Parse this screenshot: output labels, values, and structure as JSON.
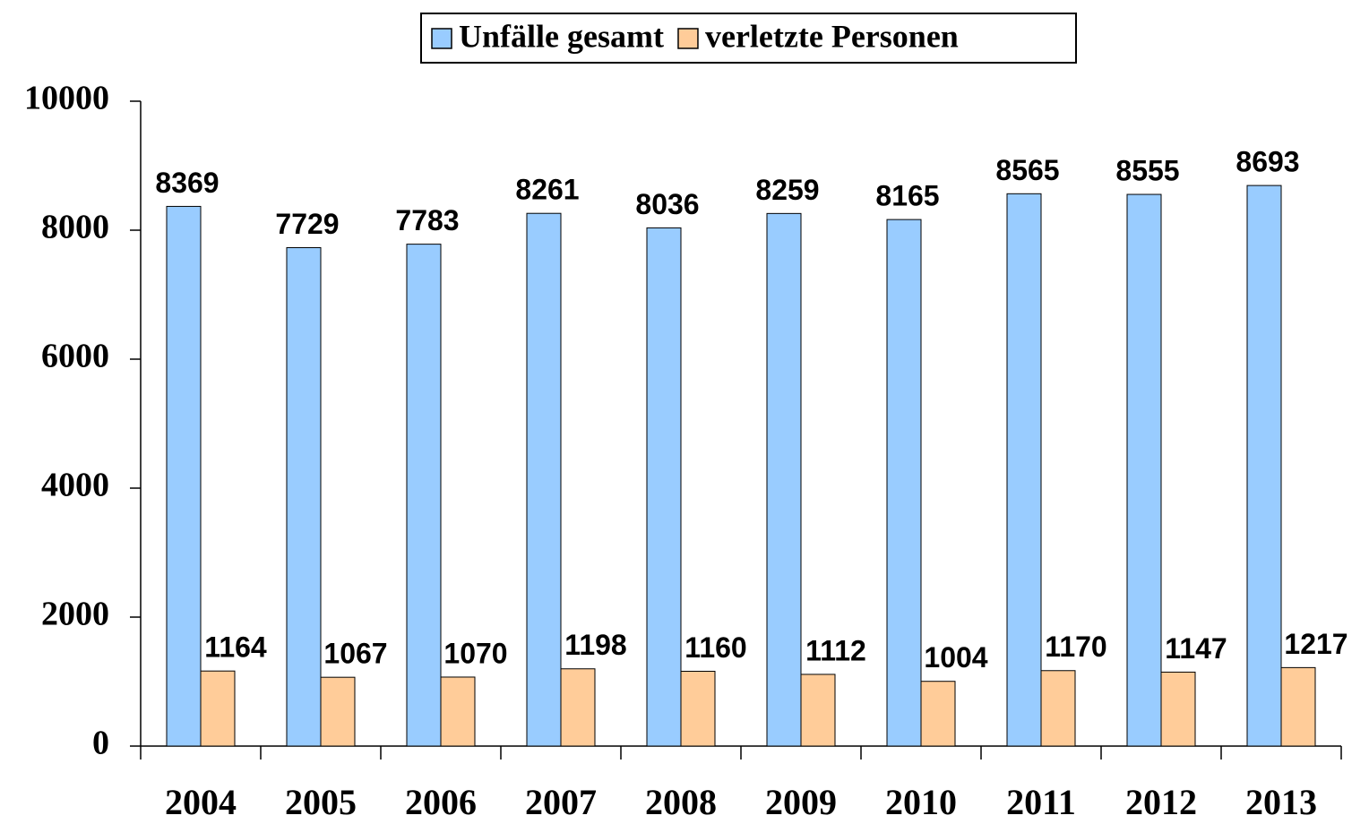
{
  "chart_data": {
    "type": "bar",
    "categories": [
      "2004",
      "2005",
      "2006",
      "2007",
      "2008",
      "2009",
      "2010",
      "2011",
      "2012",
      "2013"
    ],
    "series": [
      {
        "name": "Unfälle gesamt",
        "color": "#99ccff",
        "values": [
          8369,
          7729,
          7783,
          8261,
          8036,
          8259,
          8165,
          8565,
          8555,
          8693
        ]
      },
      {
        "name": "verletzte Personen",
        "color": "#ffcc99",
        "values": [
          1164,
          1067,
          1070,
          1198,
          1160,
          1112,
          1004,
          1170,
          1147,
          1217
        ]
      }
    ],
    "ylim": [
      0,
      10000
    ],
    "yticks": [
      0,
      2000,
      4000,
      6000,
      8000,
      10000
    ],
    "legend": "top"
  }
}
